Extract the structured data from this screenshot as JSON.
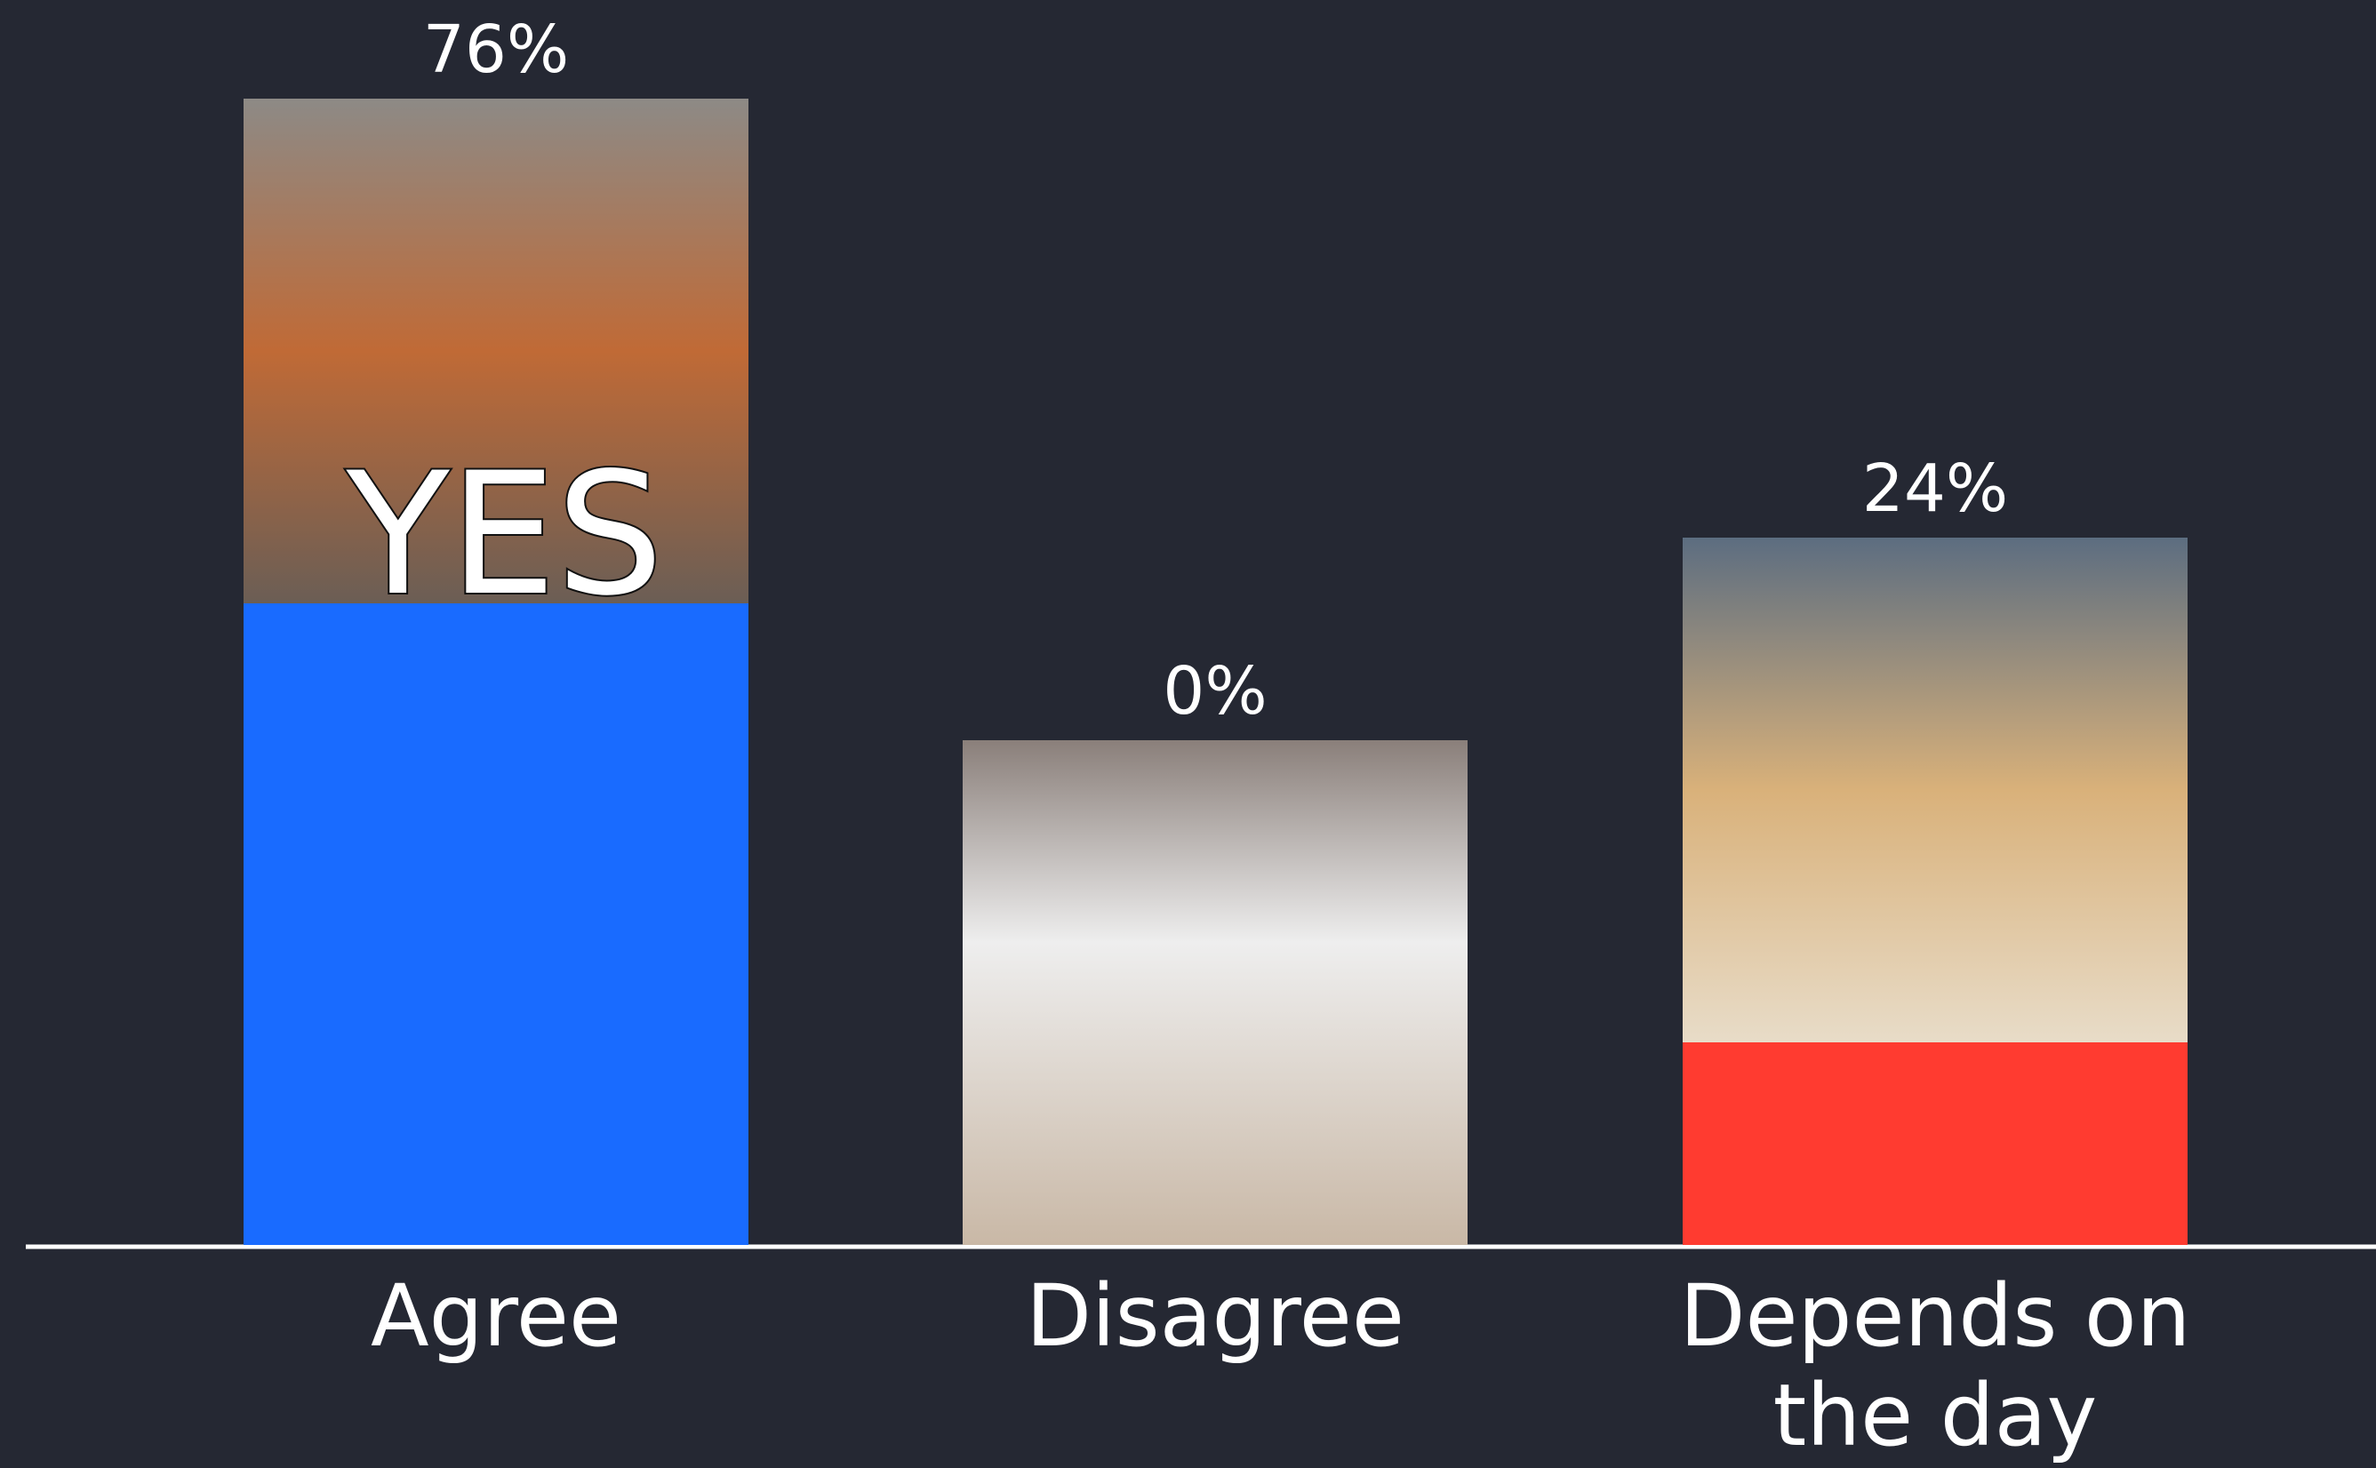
{
  "chart_data": {
    "type": "bar",
    "categories": [
      "Agree",
      "Disagree",
      "Depends on the day"
    ],
    "values": [
      76,
      0,
      24
    ],
    "value_labels": [
      "76%",
      "0%",
      "24%"
    ],
    "colors": [
      "#196bff",
      null,
      "#ff3b30"
    ],
    "annotations": [
      "YES"
    ]
  }
}
